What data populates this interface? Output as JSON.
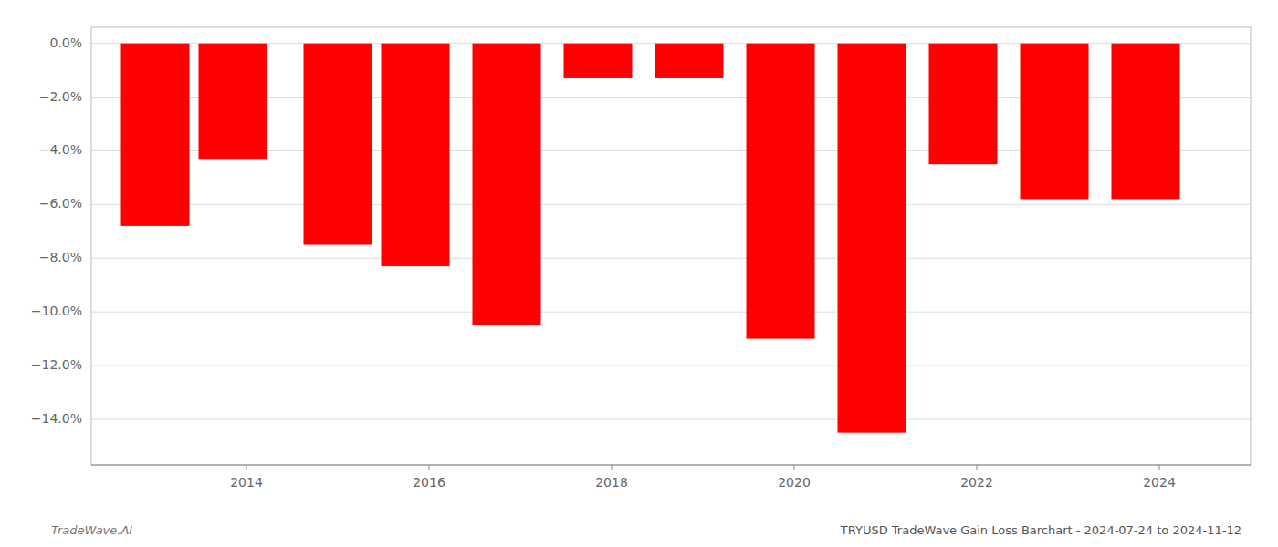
{
  "chart_data": {
    "type": "bar",
    "title": "TRYUSD TradeWave Gain Loss Barchart - 2024-07-24 to 2024-11-12",
    "annotations": [
      "TradeWave.AI"
    ],
    "x": [
      2013,
      2013.85,
      2015,
      2015.85,
      2016.85,
      2017.85,
      2018.85,
      2019.85,
      2020.85,
      2021.85,
      2022.85,
      2023.85
    ],
    "values": [
      -0.068,
      -0.043,
      -0.075,
      -0.083,
      -0.105,
      -0.013,
      -0.013,
      -0.11,
      -0.145,
      -0.045,
      -0.058,
      -0.058
    ],
    "color": "#ff0000",
    "xlim": [
      2012.3,
      2025.0
    ],
    "xticks": [
      2014,
      2016,
      2018,
      2020,
      2022,
      2024
    ],
    "ylim": [
      -0.157,
      0.006
    ],
    "yticks": [
      {
        "value": 0.0,
        "label": "0.0%"
      },
      {
        "value": -0.02,
        "label": "−2.0%"
      },
      {
        "value": -0.04,
        "label": "−4.0%"
      },
      {
        "value": -0.06,
        "label": "−6.0%"
      },
      {
        "value": -0.08,
        "label": "−8.0%"
      },
      {
        "value": -0.1,
        "label": "−10.0%"
      },
      {
        "value": -0.12,
        "label": "−12.0%"
      },
      {
        "value": -0.14,
        "label": "−14.0%"
      }
    ],
    "grid": true
  }
}
